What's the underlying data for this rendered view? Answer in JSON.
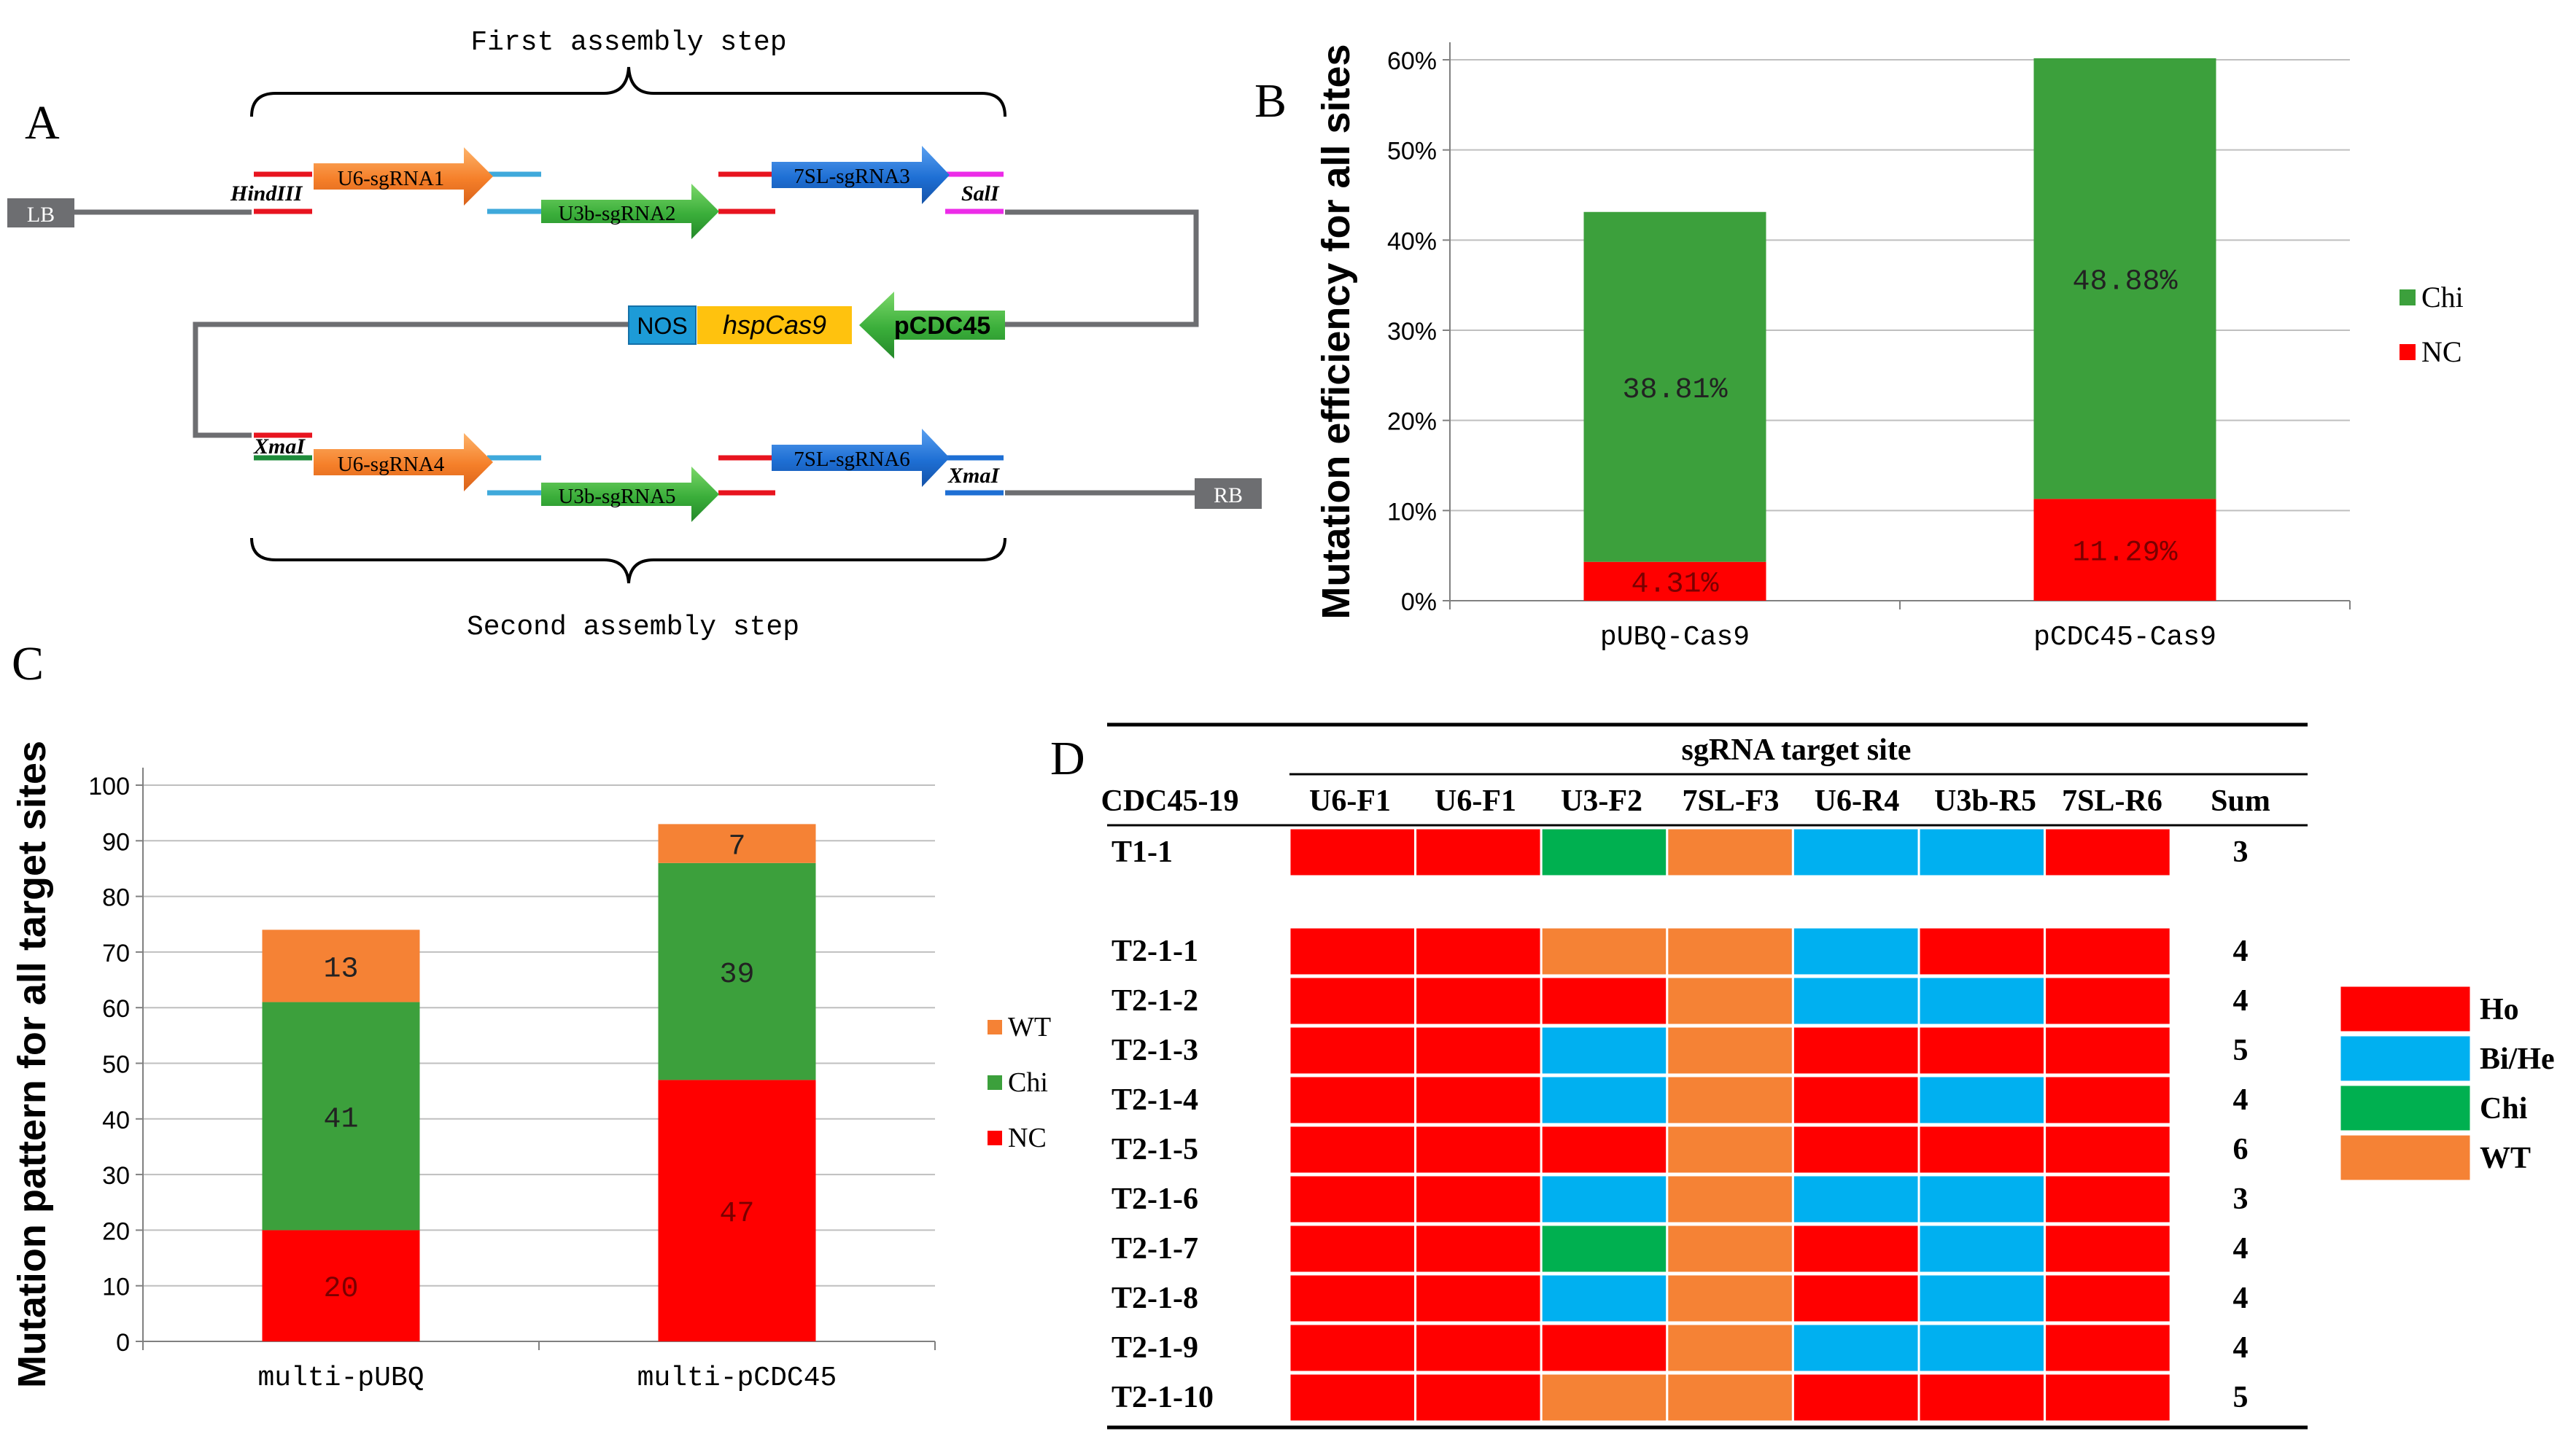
{
  "panels": {
    "a": {
      "label": "A",
      "first_step": "First assembly step",
      "second_step": "Second assembly step",
      "lb": "LB",
      "rb": "RB",
      "hind": "HindIII",
      "sal": "SalI",
      "xma": "XmaI",
      "nos": "NOS",
      "cas9": "hspCas9",
      "promoter": "pCDC45",
      "sg1": "U6-sgRNA1",
      "sg2": "U3b-sgRNA2",
      "sg3": "7SL-sgRNA3",
      "sg4": "U6-sgRNA4",
      "sg5": "U3b-sgRNA5",
      "sg6": "7SL-sgRNA6"
    },
    "b": "B",
    "c": "C",
    "d": "D"
  },
  "colors": {
    "red": "#FF0000",
    "green": "#3CA03C",
    "orange": "#F58235",
    "blue": "#00B0F0",
    "chi_green": "#00B050",
    "gray": "#6D6E71"
  },
  "chart_data": [
    {
      "type": "bar",
      "stacked": true,
      "ylabel": "Mutation efficiency for all sites",
      "categories": [
        "pUBQ-Cas9",
        "pCDC45-Cas9"
      ],
      "yticks": [
        "0%",
        "10%",
        "20%",
        "30%",
        "40%",
        "50%",
        "60%"
      ],
      "ylim": [
        0,
        60
      ],
      "series": [
        {
          "name": "NC",
          "values": [
            4.31,
            11.29
          ],
          "labels": [
            "4.31%",
            "11.29%"
          ]
        },
        {
          "name": "Chi",
          "values": [
            38.81,
            48.88
          ],
          "labels": [
            "38.81%",
            "48.88%"
          ]
        }
      ],
      "legend": [
        "Chi",
        "NC"
      ]
    },
    {
      "type": "bar",
      "stacked": true,
      "ylabel": "Mutation pattern for all target sites",
      "categories": [
        "multi-pUBQ",
        "multi-pCDC45"
      ],
      "yticks": [
        "0",
        "10",
        "20",
        "30",
        "40",
        "50",
        "60",
        "70",
        "80",
        "90",
        "100"
      ],
      "ylim": [
        0,
        100
      ],
      "series": [
        {
          "name": "NC",
          "values": [
            20,
            47
          ],
          "labels": [
            "20",
            "47"
          ]
        },
        {
          "name": "Chi",
          "values": [
            41,
            39
          ],
          "labels": [
            "41",
            "39"
          ]
        },
        {
          "name": "WT",
          "values": [
            13,
            7
          ],
          "labels": [
            "13",
            "7"
          ]
        }
      ],
      "legend": [
        "WT",
        "Chi",
        "NC"
      ]
    },
    {
      "type": "table",
      "title": "sgRNA target site",
      "columns": [
        "CDC45-19",
        "U6-F1",
        "U6-F1",
        "U3-F2",
        "7SL-F3",
        "U6-R4",
        "U3b-R5",
        "7SL-R6",
        "Sum"
      ],
      "rows": [
        {
          "name": "T1-1",
          "cells": [
            "Ho",
            "Ho",
            "Chi",
            "WT",
            "Bi/He",
            "Bi/He",
            "Ho"
          ],
          "sum": "3"
        },
        {
          "name": "T2-1-1",
          "cells": [
            "Ho",
            "Ho",
            "WT",
            "WT",
            "Bi/He",
            "Ho",
            "Ho"
          ],
          "sum": "4"
        },
        {
          "name": "T2-1-2",
          "cells": [
            "Ho",
            "Ho",
            "Ho",
            "WT",
            "Bi/He",
            "Bi/He",
            "Ho"
          ],
          "sum": "4"
        },
        {
          "name": "T2-1-3",
          "cells": [
            "Ho",
            "Ho",
            "Bi/He",
            "WT",
            "Ho",
            "Ho",
            "Ho"
          ],
          "sum": "5"
        },
        {
          "name": "T2-1-4",
          "cells": [
            "Ho",
            "Ho",
            "Bi/He",
            "WT",
            "Ho",
            "Bi/He",
            "Ho"
          ],
          "sum": "4"
        },
        {
          "name": "T2-1-5",
          "cells": [
            "Ho",
            "Ho",
            "Ho",
            "WT",
            "Ho",
            "Ho",
            "Ho"
          ],
          "sum": "6"
        },
        {
          "name": "T2-1-6",
          "cells": [
            "Ho",
            "Ho",
            "Bi/He",
            "WT",
            "Bi/He",
            "Bi/He",
            "Ho"
          ],
          "sum": "3"
        },
        {
          "name": "T2-1-7",
          "cells": [
            "Ho",
            "Ho",
            "Chi",
            "WT",
            "Ho",
            "Bi/He",
            "Ho"
          ],
          "sum": "4"
        },
        {
          "name": "T2-1-8",
          "cells": [
            "Ho",
            "Ho",
            "Bi/He",
            "WT",
            "Ho",
            "Bi/He",
            "Ho"
          ],
          "sum": "4"
        },
        {
          "name": "T2-1-9",
          "cells": [
            "Ho",
            "Ho",
            "Ho",
            "WT",
            "Bi/He",
            "Bi/He",
            "Ho"
          ],
          "sum": "4"
        },
        {
          "name": "T2-1-10",
          "cells": [
            "Ho",
            "Ho",
            "WT",
            "WT",
            "Ho",
            "Ho",
            "Ho"
          ],
          "sum": "5"
        }
      ],
      "legend": [
        "Ho",
        "Bi/He",
        "Chi",
        "WT"
      ]
    }
  ]
}
